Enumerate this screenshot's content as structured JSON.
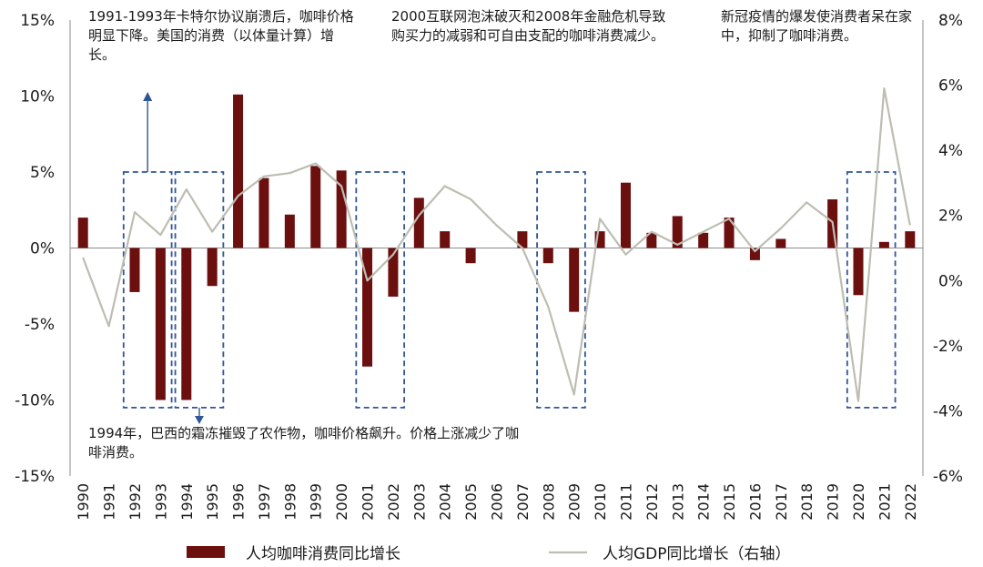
{
  "chart_data": {
    "type": "bar+line",
    "categories": [
      "1990",
      "1991",
      "1992",
      "1993",
      "1994",
      "1995",
      "1996",
      "1997",
      "1998",
      "1999",
      "2000",
      "2001",
      "2002",
      "2003",
      "2004",
      "2005",
      "2006",
      "2007",
      "2008",
      "2009",
      "2010",
      "2011",
      "2012",
      "2013",
      "2014",
      "2015",
      "2016",
      "2017",
      "2018",
      "2019",
      "2020",
      "2021",
      "2022"
    ],
    "series": [
      {
        "name": "人均咖啡消费同比增长",
        "type": "bar",
        "axis": "left",
        "color": "#6b0f0f",
        "values": [
          2.0,
          0.0,
          -2.9,
          -10.0,
          -10.0,
          -2.5,
          10.1,
          4.6,
          2.2,
          5.4,
          5.1,
          -7.8,
          -3.2,
          3.3,
          1.1,
          -1.0,
          0.0,
          1.1,
          -1.0,
          -4.2,
          1.1,
          4.3,
          1.0,
          2.1,
          1.0,
          2.0,
          -0.8,
          0.6,
          0.0,
          3.2,
          -3.1,
          0.4,
          1.1
        ]
      },
      {
        "name": "人均GDP同比增长（右轴）",
        "type": "line",
        "axis": "right",
        "color": "#bdbdb2",
        "values": [
          0.7,
          -1.4,
          2.1,
          1.4,
          2.8,
          1.5,
          2.6,
          3.2,
          3.3,
          3.6,
          2.9,
          0.0,
          0.8,
          2.0,
          2.9,
          2.5,
          1.7,
          1.0,
          -0.8,
          -3.5,
          1.9,
          0.8,
          1.5,
          1.1,
          1.5,
          1.9,
          0.9,
          1.6,
          2.4,
          1.8,
          -3.7,
          5.9,
          1.7
        ]
      }
    ],
    "left_axis": {
      "min": -15,
      "max": 15,
      "step": 5,
      "tick_labels": [
        "15%",
        "10%",
        "5%",
        "0%",
        "-5%",
        "-10%",
        "-15%"
      ]
    },
    "right_axis": {
      "min": -6,
      "max": 8,
      "step": 2,
      "tick_labels": [
        "8%",
        "6%",
        "4%",
        "2%",
        "0%",
        "-2%",
        "-4%",
        "-6%"
      ]
    },
    "highlight_ranges": [
      {
        "start": "1992",
        "end": "1993"
      },
      {
        "start": "1994",
        "end": "1995"
      },
      {
        "start": "2001",
        "end": "2002"
      },
      {
        "start": "2008",
        "end": "2009"
      },
      {
        "start": "2020",
        "end": "2021"
      }
    ]
  },
  "annotations": {
    "a1991": "1991-1993年卡特尔协议崩溃后，咖啡价格明显下降。美国的消费（以体量计算）增长。",
    "a2000": "2000互联网泡沫破灭和2008年金融危机导致购买力的减弱和可自由支配的咖啡消费减少。",
    "a2020": "新冠疫情的爆发使消费者呆在家中，抑制了咖啡消费。",
    "a1994": "1994年，巴西的霜冻摧毁了农作物，咖啡价格飙升。价格上涨减少了咖啡消费。"
  },
  "legend": {
    "bar_label": "人均咖啡消费同比增长",
    "line_label": "人均GDP同比增长（右轴）"
  }
}
